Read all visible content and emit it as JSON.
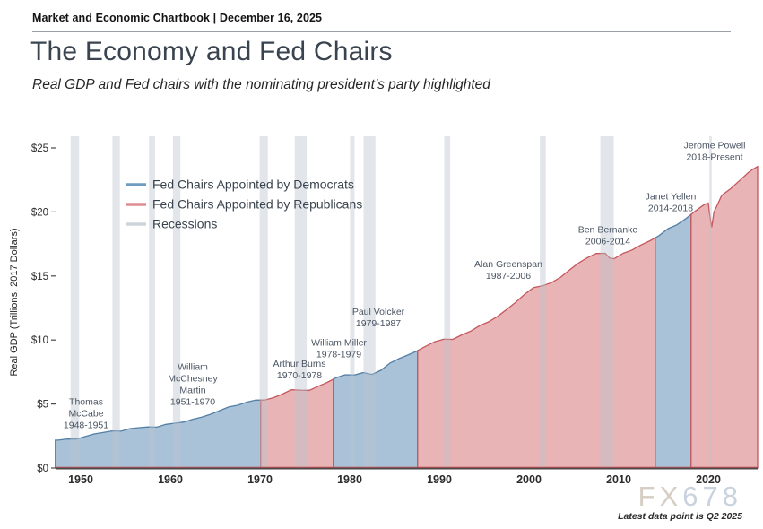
{
  "header": {
    "kicker": "Market and Economic Chartbook | December 16, 2025",
    "title": "The Economy and Fed Chairs",
    "subtitle": "Real GDP and Fed chairs with the nominating president’s party highlighted"
  },
  "legend": [
    {
      "label": "Fed Chairs Appointed by Democrats",
      "color": "#6f9dc1"
    },
    {
      "label": "Fed Chairs Appointed by Republicans",
      "color": "#dd8e92"
    },
    {
      "label": "Recessions",
      "color": "#cdd5da"
    }
  ],
  "watermark": "FX678",
  "footnote": "Latest data point is Q2 2025",
  "colors": {
    "dem_fill": "#aac2d8",
    "dem_line": "#537fa6",
    "rep_fill": "#e9b4b6",
    "rep_line": "#c4575c",
    "recession_fill": "#b9c4cc",
    "axis": "#4a4a4a",
    "baseline_red": "#b0494e",
    "tick_text": "#2b2b2b",
    "annotation_text": "#4b5563",
    "watermark_warm": "#d6cec4",
    "watermark_cool": "#c9d2dd"
  },
  "chart_data": {
    "type": "area",
    "title": "The Economy and Fed Chairs",
    "subtitle": "Real GDP and Fed chairs with the nominating president’s party highlighted",
    "xlabel": "",
    "ylabel": "Real GDP (Trillions, 2017 Dollars)",
    "y_tick_labels": [
      "$0",
      "$5",
      "$10",
      "$15",
      "$20",
      "$25"
    ],
    "y_tick_values": [
      0,
      5,
      10,
      15,
      20,
      25
    ],
    "x_tick_labels": [
      "1950",
      "1960",
      "1970",
      "1980",
      "1990",
      "2000",
      "2010",
      "2020"
    ],
    "x_tick_values": [
      1950,
      1960,
      1970,
      1980,
      1990,
      2000,
      2010,
      2020
    ],
    "xlim": [
      1947.17,
      2025.5
    ],
    "ylim": [
      0,
      25.9
    ],
    "grid": false,
    "legend_position": "upper-left-inside",
    "gdp_series": [
      [
        1947.17,
        2.18
      ],
      [
        1947.5,
        2.18
      ],
      [
        1948.5,
        2.27
      ],
      [
        1949.5,
        2.26
      ],
      [
        1950.5,
        2.46
      ],
      [
        1951.5,
        2.66
      ],
      [
        1952.5,
        2.77
      ],
      [
        1953.5,
        2.9
      ],
      [
        1954.5,
        2.88
      ],
      [
        1955.5,
        3.08
      ],
      [
        1956.5,
        3.15
      ],
      [
        1957.5,
        3.21
      ],
      [
        1958.5,
        3.19
      ],
      [
        1959.5,
        3.41
      ],
      [
        1960.5,
        3.5
      ],
      [
        1961.5,
        3.59
      ],
      [
        1962.5,
        3.81
      ],
      [
        1963.5,
        3.98
      ],
      [
        1964.5,
        4.2
      ],
      [
        1965.5,
        4.48
      ],
      [
        1966.5,
        4.77
      ],
      [
        1967.5,
        4.9
      ],
      [
        1968.5,
        5.14
      ],
      [
        1969.5,
        5.3
      ],
      [
        1970.5,
        5.31
      ],
      [
        1971.5,
        5.49
      ],
      [
        1972.5,
        5.78
      ],
      [
        1973.5,
        6.11
      ],
      [
        1974.5,
        6.08
      ],
      [
        1975.5,
        6.07
      ],
      [
        1976.5,
        6.39
      ],
      [
        1977.5,
        6.69
      ],
      [
        1978.5,
        7.06
      ],
      [
        1979.5,
        7.28
      ],
      [
        1980.5,
        7.26
      ],
      [
        1981.5,
        7.45
      ],
      [
        1982.5,
        7.31
      ],
      [
        1983.5,
        7.64
      ],
      [
        1984.5,
        8.2
      ],
      [
        1985.5,
        8.54
      ],
      [
        1986.5,
        8.83
      ],
      [
        1987.5,
        9.14
      ],
      [
        1988.5,
        9.52
      ],
      [
        1989.5,
        9.87
      ],
      [
        1990.5,
        10.06
      ],
      [
        1991.5,
        10.05
      ],
      [
        1992.5,
        10.4
      ],
      [
        1993.5,
        10.69
      ],
      [
        1994.5,
        11.12
      ],
      [
        1995.5,
        11.42
      ],
      [
        1996.5,
        11.85
      ],
      [
        1997.5,
        12.38
      ],
      [
        1998.5,
        12.94
      ],
      [
        1999.5,
        13.56
      ],
      [
        2000.5,
        14.1
      ],
      [
        2001.5,
        14.23
      ],
      [
        2002.5,
        14.48
      ],
      [
        2003.5,
        14.89
      ],
      [
        2004.5,
        15.46
      ],
      [
        2005.5,
        16.0
      ],
      [
        2006.5,
        16.43
      ],
      [
        2007.5,
        16.76
      ],
      [
        2008.5,
        16.77
      ],
      [
        2009.0,
        16.4
      ],
      [
        2009.5,
        16.35
      ],
      [
        2010.5,
        16.77
      ],
      [
        2011.5,
        17.03
      ],
      [
        2012.5,
        17.42
      ],
      [
        2013.5,
        17.75
      ],
      [
        2014.5,
        18.15
      ],
      [
        2015.5,
        18.69
      ],
      [
        2016.5,
        19.0
      ],
      [
        2017.5,
        19.48
      ],
      [
        2018.5,
        20.04
      ],
      [
        2019.5,
        20.55
      ],
      [
        2020.0,
        20.7
      ],
      [
        2020.125,
        19.9
      ],
      [
        2020.375,
        18.8
      ],
      [
        2020.625,
        20.0
      ],
      [
        2020.875,
        20.35
      ],
      [
        2021.5,
        21.3
      ],
      [
        2022.5,
        21.82
      ],
      [
        2023.5,
        22.46
      ],
      [
        2024.5,
        23.1
      ],
      [
        2025.0,
        23.35
      ],
      [
        2025.5,
        23.55
      ]
    ],
    "chairs": [
      {
        "name": "Thomas McCabe",
        "years": "1948-1951",
        "party": "Democrats",
        "start": 1947.17,
        "end": 1951.25,
        "label_lines": [
          "Thomas",
          "McCabe",
          "1948-1951"
        ],
        "label_year": 1950.6,
        "label_top_value": 5.55
      },
      {
        "name": "William McChesney Martin",
        "years": "1951-1970",
        "party": "Democrats",
        "start": 1951.25,
        "end": 1970.08,
        "label_lines": [
          "William",
          "McChesney",
          "Martin",
          "1951-1970"
        ],
        "label_year": 1962.5,
        "label_top_value": 8.3
      },
      {
        "name": "Arthur Burns",
        "years": "1970-1978",
        "party": "Republicans",
        "start": 1970.08,
        "end": 1978.17,
        "label_lines": [
          "Arthur Burns",
          "1970-1978"
        ],
        "label_year": 1974.4,
        "label_top_value": 8.55
      },
      {
        "name": "William Miller",
        "years": "1978-1979",
        "party": "Democrats",
        "start": 1978.17,
        "end": 1979.58,
        "label_lines": [
          "William Miller",
          "1978-1979"
        ],
        "label_year": 1978.8,
        "label_top_value": 10.2
      },
      {
        "name": "Paul Volcker",
        "years": "1979-1987",
        "party": "Democrats",
        "start": 1979.58,
        "end": 1987.58,
        "label_lines": [
          "Paul Volcker",
          "1979-1987"
        ],
        "label_year": 1983.2,
        "label_top_value": 12.6
      },
      {
        "name": "Alan Greenspan",
        "years": "1987-2006",
        "party": "Republicans",
        "start": 1987.58,
        "end": 2006.08,
        "label_lines": [
          "Alan Greenspan",
          "1987-2006"
        ],
        "label_year": 1997.7,
        "label_top_value": 16.3
      },
      {
        "name": "Ben Bernanke",
        "years": "2006-2014",
        "party": "Republicans",
        "start": 2006.08,
        "end": 2014.08,
        "label_lines": [
          "Ben Bernanke",
          "2006-2014"
        ],
        "label_year": 2008.8,
        "label_top_value": 19.0
      },
      {
        "name": "Janet Yellen",
        "years": "2014-2018",
        "party": "Democrats",
        "start": 2014.08,
        "end": 2018.08,
        "label_lines": [
          "Janet Yellen",
          "2014-2018"
        ],
        "label_year": 2015.8,
        "label_top_value": 21.6
      },
      {
        "name": "Jerome Powell",
        "years": "2018-Present",
        "party": "Republicans",
        "start": 2018.08,
        "end": 2025.5,
        "label_lines": [
          "Jerome Powell",
          "2018-Present"
        ],
        "label_year": 2020.7,
        "label_top_value": 25.6
      }
    ],
    "recessions": [
      [
        1948.87,
        1949.83
      ],
      [
        1953.54,
        1954.37
      ],
      [
        1957.62,
        1958.29
      ],
      [
        1960.29,
        1961.12
      ],
      [
        1969.96,
        1970.87
      ],
      [
        1973.87,
        1975.21
      ],
      [
        1980.04,
        1980.54
      ],
      [
        1981.54,
        1982.87
      ],
      [
        1990.54,
        1991.21
      ],
      [
        2001.21,
        2001.87
      ],
      [
        2007.96,
        2009.46
      ],
      [
        2020.12,
        2020.29
      ]
    ]
  }
}
